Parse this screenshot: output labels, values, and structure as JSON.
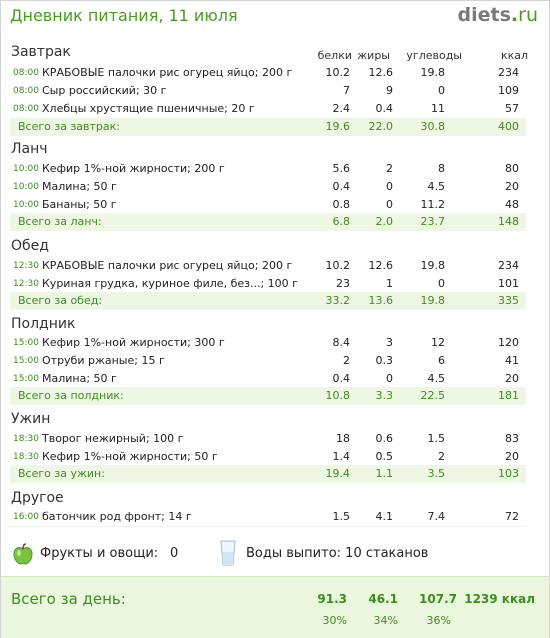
{
  "header": {
    "title": "Дневник питания, 11 июля",
    "logo_main": "diets",
    "logo_dot": ".",
    "logo_tld": "ru"
  },
  "columns": {
    "protein": "белки",
    "fat": "жиры",
    "carbs": "углеводы",
    "kcal": "ккал"
  },
  "meals": [
    {
      "title": "Завтрак",
      "items": [
        {
          "time": "08:00",
          "name": "КРАБОВЫЕ палочки рис огурец яйцо; 200 г",
          "protein": "10.2",
          "fat": "12.6",
          "carbs": "19.8",
          "kcal": "234"
        },
        {
          "time": "08:00",
          "name": "Сыр российский; 30 г",
          "protein": "7",
          "fat": "9",
          "carbs": "0",
          "kcal": "109"
        },
        {
          "time": "08:00",
          "name": "Хлебцы хрустящие пшеничные; 20 г",
          "protein": "2.4",
          "fat": "0.4",
          "carbs": "11",
          "kcal": "57"
        }
      ],
      "total": {
        "label": "Всего за завтрак:",
        "protein": "19.6",
        "fat": "22.0",
        "carbs": "30.8",
        "kcal": "400"
      }
    },
    {
      "title": "Ланч",
      "items": [
        {
          "time": "10:00",
          "name": "Кефир 1%-ной жирности; 200 г",
          "protein": "5.6",
          "fat": "2",
          "carbs": "8",
          "kcal": "80"
        },
        {
          "time": "10:00",
          "name": "Малина; 50 г",
          "protein": "0.4",
          "fat": "0",
          "carbs": "4.5",
          "kcal": "20"
        },
        {
          "time": "10:00",
          "name": "Бананы; 50 г",
          "protein": "0.8",
          "fat": "0",
          "carbs": "11.2",
          "kcal": "48"
        }
      ],
      "total": {
        "label": "Всего за ланч:",
        "protein": "6.8",
        "fat": "2.0",
        "carbs": "23.7",
        "kcal": "148"
      }
    },
    {
      "title": "Обед",
      "items": [
        {
          "time": "12:30",
          "name": "КРАБОВЫЕ палочки рис огурец яйцо; 200 г",
          "protein": "10.2",
          "fat": "12.6",
          "carbs": "19.8",
          "kcal": "234"
        },
        {
          "time": "12:30",
          "name": "Куриная грудка, куриное филе, без...; 100 г",
          "protein": "23",
          "fat": "1",
          "carbs": "0",
          "kcal": "101"
        }
      ],
      "total": {
        "label": "Всего за обед:",
        "protein": "33.2",
        "fat": "13.6",
        "carbs": "19.8",
        "kcal": "335"
      }
    },
    {
      "title": "Полдник",
      "items": [
        {
          "time": "15:00",
          "name": "Кефир 1%-ной жирности; 300 г",
          "protein": "8.4",
          "fat": "3",
          "carbs": "12",
          "kcal": "120"
        },
        {
          "time": "15:00",
          "name": "Отруби ржаные; 15 г",
          "protein": "2",
          "fat": "0.3",
          "carbs": "6",
          "kcal": "41"
        },
        {
          "time": "15:00",
          "name": "Малина; 50 г",
          "protein": "0.4",
          "fat": "0",
          "carbs": "4.5",
          "kcal": "20"
        }
      ],
      "total": {
        "label": "Всего за полдник:",
        "protein": "10.8",
        "fat": "3.3",
        "carbs": "22.5",
        "kcal": "181"
      }
    },
    {
      "title": "Ужин",
      "items": [
        {
          "time": "18:30",
          "name": "Творог нежирный; 100 г",
          "protein": "18",
          "fat": "0.6",
          "carbs": "1.5",
          "kcal": "83"
        },
        {
          "time": "18:30",
          "name": "Кефир 1%-ной жирности; 50 г",
          "protein": "1.4",
          "fat": "0.5",
          "carbs": "2",
          "kcal": "20"
        }
      ],
      "total": {
        "label": "Всего за ужин:",
        "protein": "19.4",
        "fat": "1.1",
        "carbs": "3.5",
        "kcal": "103"
      }
    },
    {
      "title": "Другое",
      "items": [
        {
          "time": "16:00",
          "name": "батончик  род фронт; 14 г",
          "protein": "1.5",
          "fat": "4.1",
          "carbs": "7.4",
          "kcal": "72"
        }
      ]
    }
  ],
  "extras": {
    "fruits_label": "Фрукты и овощи:",
    "fruits_value": "0",
    "water_label": "Воды выпито: 10 стаканов",
    "fruits_icon": "green-apple-icon",
    "water_icon": "water-glass-icon"
  },
  "day_total": {
    "label": "Всего за день:",
    "protein": "91.3",
    "fat": "46.1",
    "carbs": "107.7",
    "kcal": "1239 ккал",
    "protein_pct": "30%",
    "fat_pct": "34%",
    "carbs_pct": "36%"
  },
  "colors": {
    "accent_green": "#4b9a26",
    "total_bg": "#eef7e3",
    "day_bg": "#eaf6dd"
  }
}
